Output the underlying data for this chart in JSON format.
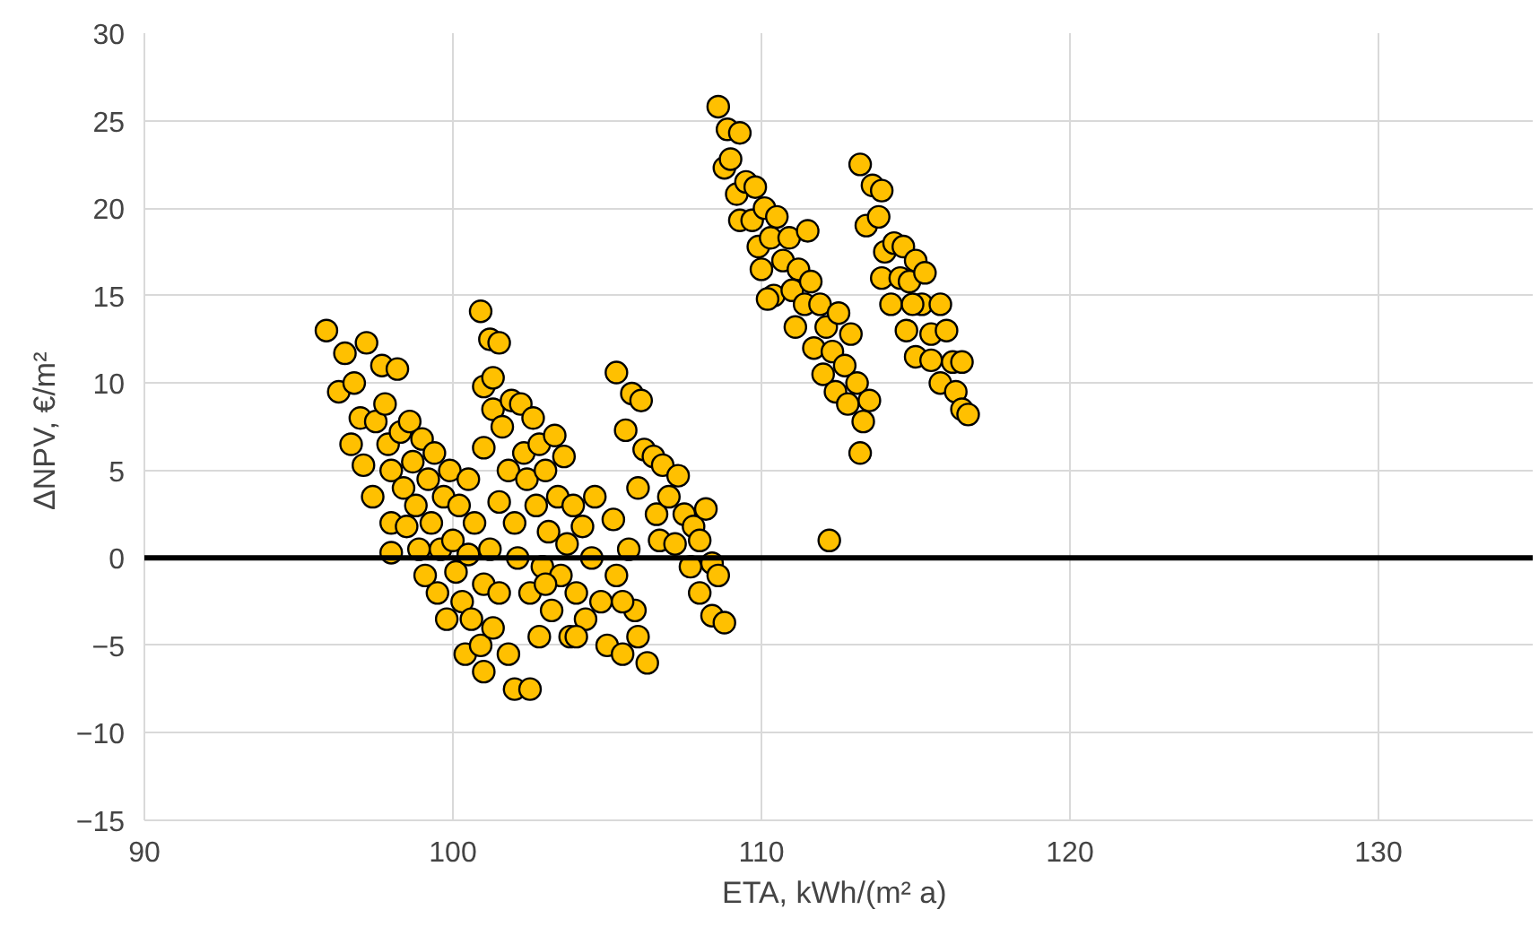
{
  "chart_data": {
    "type": "scatter",
    "xlabel": "ETA,  kWh/(m² a)",
    "ylabel": "ΔNPV,  €/m²",
    "xlim": [
      90,
      135
    ],
    "ylim": [
      -15,
      30
    ],
    "xticks": [
      90,
      100,
      110,
      120,
      130
    ],
    "yticks": [
      -15,
      -10,
      -5,
      0,
      5,
      10,
      15,
      20,
      25,
      30
    ],
    "grid": true,
    "marker": "circle",
    "ref_lines": [
      {
        "axis": "y",
        "value": 0,
        "color": "#000000"
      }
    ],
    "series": [
      {
        "color": "#ffc000",
        "x": [
          95.9,
          96.3,
          96.5,
          96.8,
          96.7,
          97.0,
          97.2,
          97.1,
          97.4,
          97.5,
          97.7,
          97.8,
          97.9,
          98.0,
          98.0,
          98.2,
          98.3,
          98.4,
          98.5,
          98.6,
          98.7,
          98.8,
          98.9,
          99.0,
          99.1,
          99.2,
          99.3,
          99.4,
          99.5,
          99.6,
          99.7,
          99.8,
          99.9,
          100.0,
          100.1,
          100.2,
          100.3,
          100.4,
          100.5,
          100.6,
          100.7,
          100.9,
          101.0,
          100.5,
          98.0,
          100.9,
          101.0,
          101.2,
          101.5,
          101.3,
          101.0,
          101.3,
          101.6,
          101.8,
          101.5,
          101.9,
          102.0,
          102.2,
          102.3,
          102.1,
          102.4,
          102.5,
          102.6,
          102.7,
          102.8,
          102.9,
          103.0,
          103.1,
          103.2,
          103.3,
          103.4,
          103.5,
          103.6,
          103.7,
          103.8,
          103.9,
          104.0,
          104.2,
          104.3,
          104.5,
          104.6,
          104.8,
          105.0,
          105.2,
          105.3,
          105.5,
          101.5,
          101.8,
          102.0,
          102.5,
          101.3,
          101.0,
          102.8,
          104.0,
          101.2,
          103.0,
          105.3,
          105.8,
          106.1,
          105.6,
          106.2,
          106.0,
          106.5,
          106.6,
          106.8,
          107.0,
          106.7,
          107.3,
          107.2,
          107.5,
          107.8,
          107.7,
          108.0,
          108.2,
          108.0,
          108.4,
          108.4,
          108.8,
          108.6,
          106.3,
          105.9,
          106.0,
          105.5,
          105.7,
          108.6,
          108.9,
          109.3,
          108.8,
          109.0,
          109.2,
          109.5,
          109.8,
          109.3,
          109.7,
          109.9,
          110.1,
          110.3,
          110.0,
          110.5,
          110.7,
          110.4,
          110.9,
          111.0,
          111.2,
          111.4,
          111.1,
          111.6,
          111.7,
          111.9,
          112.0,
          112.1,
          112.3,
          112.5,
          112.4,
          112.7,
          112.9,
          112.8,
          113.1,
          113.3,
          113.2,
          113.5,
          112.2,
          111.5,
          110.2,
          113.2,
          113.6,
          113.9,
          113.4,
          113.8,
          114.0,
          114.3,
          114.6,
          113.9,
          114.2,
          114.5,
          114.8,
          115.0,
          115.3,
          114.7,
          115.2,
          115.5,
          115.0,
          115.8,
          116.0,
          115.5,
          116.2,
          115.8,
          116.3,
          116.5,
          116.7,
          116.5,
          114.9
        ],
        "values": [
          13.0,
          9.5,
          11.7,
          10.0,
          6.5,
          8.0,
          12.3,
          5.3,
          3.5,
          7.8,
          11.0,
          8.8,
          6.5,
          5.0,
          2.0,
          10.8,
          7.2,
          4.0,
          1.8,
          7.8,
          5.5,
          3.0,
          0.5,
          6.8,
          -1.0,
          4.5,
          2.0,
          6.0,
          -2.0,
          0.5,
          3.5,
          -3.5,
          5.0,
          1.0,
          -0.8,
          3.0,
          -2.5,
          -5.5,
          0.2,
          -3.5,
          2.0,
          -5.0,
          -1.5,
          4.5,
          0.3,
          14.1,
          9.8,
          12.5,
          12.3,
          10.3,
          6.3,
          8.5,
          7.5,
          5.0,
          3.2,
          9.0,
          2.0,
          8.8,
          6.0,
          0.0,
          4.5,
          -2.0,
          8.0,
          3.0,
          6.5,
          -0.5,
          5.0,
          1.5,
          -3.0,
          7.0,
          3.5,
          -1.0,
          5.8,
          0.8,
          -4.5,
          3.0,
          -2.0,
          1.8,
          -3.5,
          0.0,
          3.5,
          -2.5,
          -5.0,
          2.2,
          -1.0,
          -5.5,
          -2.0,
          -5.5,
          -7.5,
          -7.5,
          -4.0,
          -6.5,
          -4.5,
          -4.5,
          0.5,
          -1.5,
          10.6,
          9.4,
          9.0,
          7.3,
          6.2,
          4.0,
          5.8,
          2.5,
          5.3,
          3.5,
          1.0,
          4.7,
          0.8,
          2.5,
          1.8,
          -0.5,
          1.0,
          2.8,
          -2.0,
          -0.3,
          -3.3,
          -3.7,
          -1.0,
          -6.0,
          -3.0,
          -4.5,
          -2.5,
          0.5,
          25.8,
          24.5,
          24.3,
          22.3,
          22.8,
          20.8,
          21.5,
          21.2,
          19.3,
          19.3,
          17.8,
          20.0,
          18.3,
          16.5,
          19.5,
          17.0,
          15.0,
          18.3,
          15.3,
          16.5,
          14.5,
          13.2,
          15.8,
          12.0,
          14.5,
          10.5,
          13.2,
          11.8,
          14.0,
          9.5,
          11.0,
          12.8,
          8.8,
          10.0,
          7.8,
          6.0,
          9.0,
          1.0,
          18.7,
          14.8,
          22.5,
          21.3,
          21.0,
          19.0,
          19.5,
          17.5,
          18.0,
          17.8,
          16.0,
          14.5,
          16.0,
          15.8,
          17.0,
          16.3,
          13.0,
          14.5,
          12.8,
          11.5,
          14.5,
          13.0,
          11.3,
          11.2,
          10.0,
          9.5,
          8.5,
          8.2,
          11.2,
          14.5
        ]
      }
    ]
  }
}
